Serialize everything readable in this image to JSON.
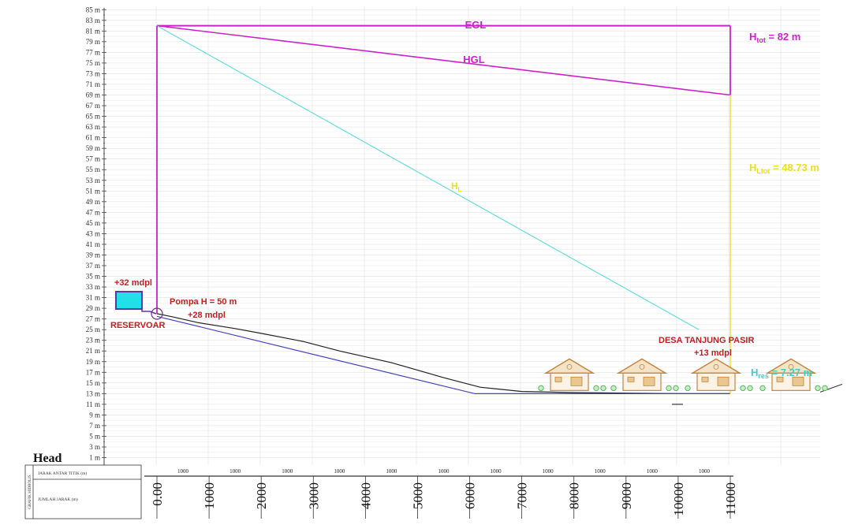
{
  "chart_data": {
    "type": "line",
    "title": "",
    "ylabel": "",
    "y_unit": "m",
    "ylim": [
      0,
      86
    ],
    "xlim": [
      0,
      11000
    ],
    "y_ticks": [
      1,
      3,
      5,
      7,
      9,
      11,
      13,
      15,
      17,
      19,
      21,
      23,
      25,
      27,
      29,
      31,
      33,
      35,
      37,
      39,
      41,
      43,
      45,
      47,
      49,
      51,
      53,
      55,
      57,
      59,
      61,
      63,
      65,
      67,
      69,
      71,
      73,
      75,
      77,
      79,
      81,
      83,
      85
    ],
    "series": [
      {
        "name": "EGL",
        "color": "#cc22cc",
        "x": [
          0,
          11000
        ],
        "y": [
          82,
          82
        ]
      },
      {
        "name": "HGL",
        "color": "#cc22cc",
        "x": [
          0,
          11000
        ],
        "y": [
          82,
          69
        ]
      },
      {
        "name": "HL",
        "color": "#66dddd",
        "x": [
          0,
          10400
        ],
        "y": [
          82,
          25
        ]
      },
      {
        "name": "",
        "color": "#222222",
        "x": [
          0,
          300,
          800,
          1500,
          2000,
          2800,
          3500,
          4500,
          5500,
          6200,
          7000,
          8000,
          9000,
          10000,
          11000
        ],
        "y": [
          28,
          27.4,
          26.3,
          25.2,
          24.3,
          22.8,
          21,
          18.8,
          16,
          14.2,
          13.4,
          13.2,
          13.1,
          13,
          13
        ]
      },
      {
        "name": "",
        "color": "#4444bb",
        "x": [
          0,
          6100,
          11000
        ],
        "y": [
          27.5,
          13,
          13
        ]
      }
    ],
    "annotations": {
      "egl": "EGL",
      "hgl": "HGL",
      "h_tot_main": "H",
      "h_tot_sub": "tot",
      "h_tot_value": " = 82 m",
      "hl_main": "H",
      "hl_sub": "L",
      "hltot_main": "H",
      "hltot_sub": "Ltot",
      "hltot_value": " = 48.73 m",
      "hres_main": "H",
      "hres_sub": "res",
      "hres_value": " = 7.27 m",
      "reservoir_elev": "+32 mdpl",
      "reservoir": "RESERVOAR",
      "pump": "Pompa H = 50 m",
      "pump_elev": "+28 mdpl",
      "village": "DESA TANJUNG PASIR",
      "village_elev": "+13 mdpl"
    },
    "table": {
      "head_label": "Head",
      "side_label": "GRAFIK HIDROLIS",
      "row1_label": "JARAK ANTAR TITIK (m)",
      "row2_label": "JUMLAH JARAK (m)",
      "segment_distances": [
        "1000",
        "1000",
        "1000",
        "1000",
        "1000",
        "1000",
        "1000",
        "1000",
        "1000",
        "1000",
        "1000"
      ],
      "cumulative": [
        "0.00",
        "1000",
        "2000",
        "3000",
        "4000",
        "5000",
        "6000",
        "7000",
        "8000",
        "9000",
        "10000",
        "11000"
      ]
    },
    "colors": {
      "energy_line": "#cc22cc",
      "head_loss": "#66dddd",
      "ground": "#222222",
      "pipe": "#4444bb",
      "annot_red": "#c02020",
      "annot_yellow": "#e8e020",
      "annot_cyan": "#44cccc",
      "reservoir_fill": "#22e0e8",
      "house": "#c8843c",
      "tree": "#5ab85a"
    }
  }
}
